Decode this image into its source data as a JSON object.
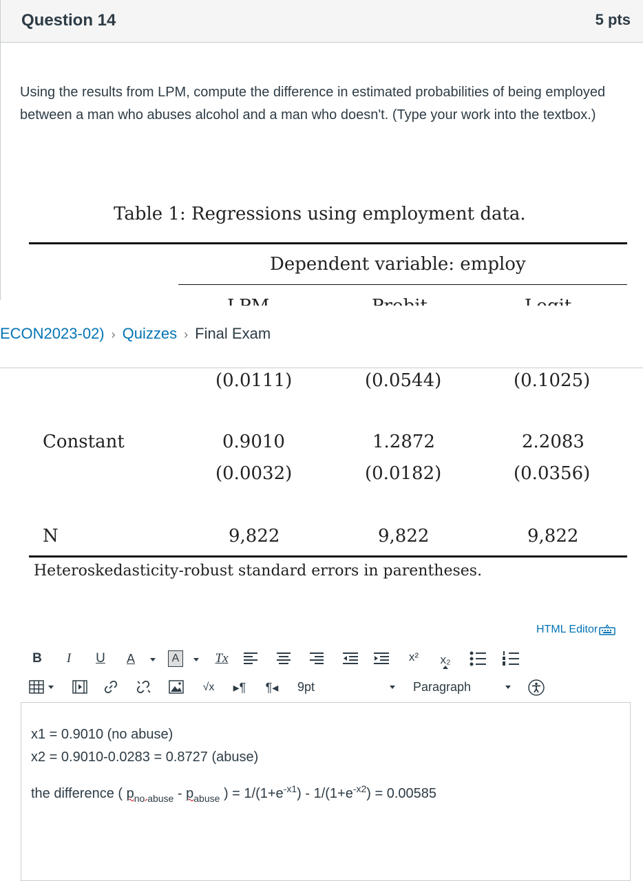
{
  "question": {
    "title": "Question 14",
    "points": "5 pts",
    "text": "Using the results from LPM, compute the difference in estimated probabilities of being employed between a man who abuses alcohol and a man who doesn't. (Type your work into the textbox.)"
  },
  "table": {
    "title": "Table 1: Regressions using employment data.",
    "dep_var": "Dependent variable: employ",
    "partial_header": [
      "LPM",
      "Probit",
      "Logit"
    ],
    "rows": [
      {
        "label": "",
        "values": [
          "(0.0111)",
          "(0.0544)",
          "(0.1025)"
        ]
      },
      {
        "label": "Constant",
        "values": [
          "0.9010",
          "1.2872",
          "2.2083"
        ]
      },
      {
        "label": "",
        "values": [
          "(0.0032)",
          "(0.0182)",
          "(0.0356)"
        ]
      },
      {
        "label": "N",
        "values": [
          "9,822",
          "9,822",
          "9,822"
        ]
      }
    ],
    "footnote": "Heteroskedasticity-robust standard errors in parentheses."
  },
  "breadcrumb": {
    "course": "ECON2023-02)",
    "quizzes": "Quizzes",
    "current": "Final Exam"
  },
  "editor": {
    "html_editor_label": "HTML Editor",
    "toolbar_row1": [
      "B",
      "I",
      "U",
      "A",
      "A",
      "Tx",
      "align-left",
      "align-center",
      "align-right",
      "outdent",
      "indent",
      "x²",
      "x₂",
      "bullet-list",
      "numbered-list"
    ],
    "font_size": "9pt",
    "block_format": "Paragraph",
    "content": {
      "line1": "x1 = 0.9010 (no abuse)",
      "line2": "x2 = 0.9010-0.0283 = 0.8727 (abuse)",
      "line3_prefix": "the difference ( ",
      "p1": "p",
      "p1_sub": "no abuse",
      "minus": " - ",
      "p2": "p",
      "p2_sub": "abuse",
      "line3_mid": " ) = 1/(1+e",
      "exp1": "-x1",
      "line3_mid2": ") - 1/(1+e",
      "exp2": "-x2",
      "line3_end": ") = 0.00585"
    }
  }
}
